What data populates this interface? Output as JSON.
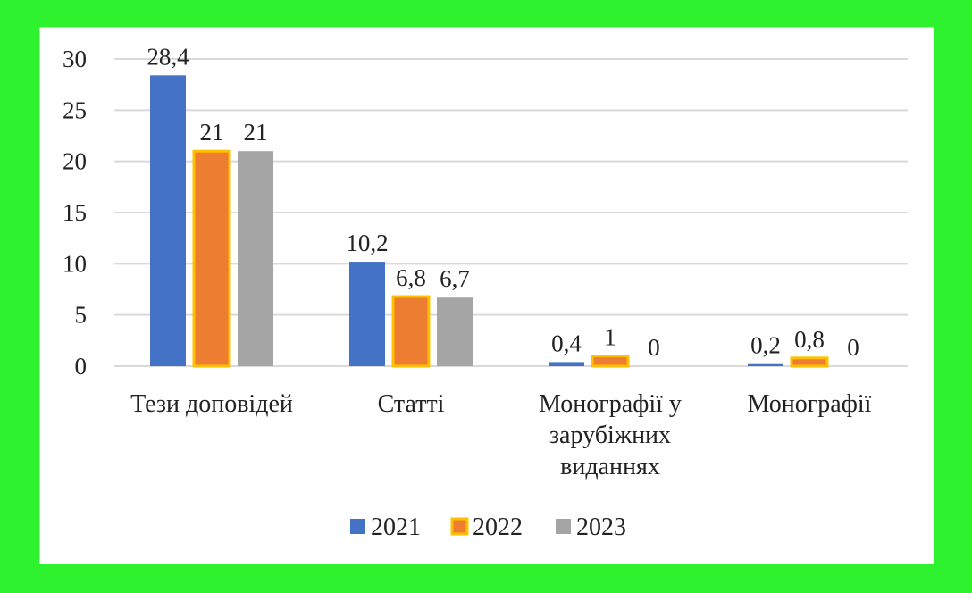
{
  "colors": {
    "page_background": "#2ef22e",
    "plot_background": "#ffffff",
    "gridline": "#d9d9d9",
    "series_2021": "#4472c4",
    "series_2022": "#ed7d31",
    "series_2022_outline": "#ffc000",
    "series_2023": "#a5a5a5"
  },
  "chart_data": {
    "type": "bar",
    "title": "",
    "xlabel": "",
    "ylabel": "",
    "ylim": [
      0,
      30
    ],
    "yticks": [
      "0",
      "5",
      "10",
      "15",
      "20",
      "25",
      "30"
    ],
    "grid": true,
    "legend_position": "bottom",
    "categories": [
      [
        "Тези доповідей"
      ],
      [
        "Статті"
      ],
      [
        "Монографії у",
        "зарубіжних",
        "виданнях"
      ],
      [
        "Монографії"
      ]
    ],
    "series": [
      {
        "name": "2021",
        "color": "#4472c4",
        "values": [
          28.4,
          10.2,
          0.4,
          0.2
        ],
        "labels": [
          "28,4",
          "10,2",
          "0,4",
          "0,2"
        ]
      },
      {
        "name": "2022",
        "color": "#ed7d31",
        "outline": "#ffc000",
        "values": [
          21,
          6.8,
          1,
          0.8
        ],
        "labels": [
          "21",
          "6,8",
          "1",
          "0,8"
        ]
      },
      {
        "name": "2023",
        "color": "#a5a5a5",
        "values": [
          21,
          6.7,
          0,
          0
        ],
        "labels": [
          "21",
          "6,7",
          "0",
          "0"
        ]
      }
    ]
  }
}
